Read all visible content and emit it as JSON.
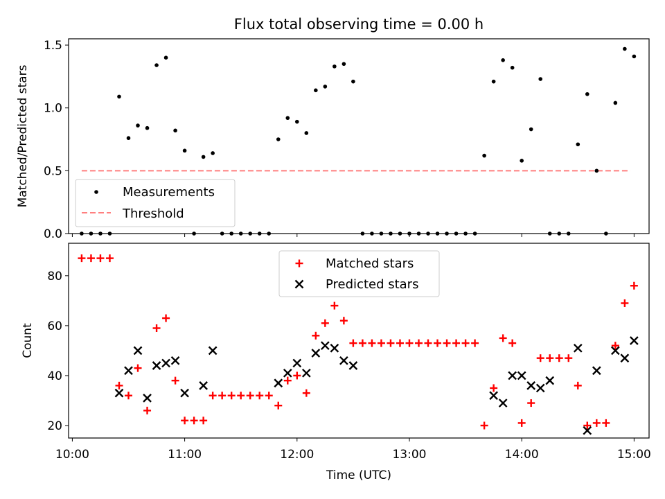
{
  "chart_data": [
    {
      "type": "scatter",
      "title": "Flux total observing time = 0.00 h",
      "xlabel": "",
      "ylabel": "Matched/Predicted stars",
      "ylim": [
        0,
        1.55
      ],
      "yticks": [
        "0.0",
        "0.5",
        "1.0",
        "1.5"
      ],
      "legend": {
        "placement": "lower-left",
        "entries": [
          "Measurements",
          "Threshold"
        ]
      },
      "threshold": {
        "name": "Threshold",
        "value": 0.5,
        "x_start": "10:05",
        "x_end": "14:58",
        "color": "#ff7f7f"
      },
      "series": [
        {
          "name": "Measurements",
          "color": "#000000",
          "x": [
            "10:05",
            "10:10",
            "10:15",
            "10:20",
            "10:25",
            "10:30",
            "10:35",
            "10:40",
            "10:45",
            "10:50",
            "10:55",
            "11:00",
            "11:05",
            "11:10",
            "11:15",
            "11:20",
            "11:25",
            "11:30",
            "11:35",
            "11:40",
            "11:45",
            "11:50",
            "11:55",
            "12:00",
            "12:05",
            "12:10",
            "12:15",
            "12:20",
            "12:25",
            "12:30",
            "12:35",
            "12:40",
            "12:45",
            "12:50",
            "12:55",
            "13:00",
            "13:05",
            "13:10",
            "13:15",
            "13:20",
            "13:25",
            "13:30",
            "13:35",
            "13:40",
            "13:45",
            "13:50",
            "13:55",
            "14:00",
            "14:05",
            "14:10",
            "14:15",
            "14:20",
            "14:25",
            "14:30",
            "14:35",
            "14:40",
            "14:45",
            "14:50",
            "14:55",
            "15:00"
          ],
          "y": [
            0,
            0,
            0,
            0,
            1.09,
            0.76,
            0.86,
            0.84,
            1.34,
            1.4,
            0.82,
            0.66,
            0,
            0.61,
            0.64,
            0,
            0,
            0,
            0,
            0,
            0,
            0.75,
            0.92,
            0.89,
            0.8,
            1.14,
            1.17,
            1.33,
            1.35,
            1.21,
            0,
            0,
            0,
            0,
            0,
            0,
            0,
            0,
            0,
            0,
            0,
            0,
            0,
            0.62,
            1.21,
            1.38,
            1.32,
            0.58,
            0.83,
            1.23,
            0,
            0,
            0,
            0.71,
            1.11,
            0.5,
            0,
            1.04,
            1.47,
            1.41
          ]
        }
      ]
    },
    {
      "type": "scatter",
      "title": "",
      "xlabel": "Time (UTC)",
      "ylabel": "Count",
      "xlim": [
        "09:58",
        "15:08"
      ],
      "xticks": [
        "10:00",
        "11:00",
        "12:00",
        "13:00",
        "14:00",
        "15:00"
      ],
      "ylim": [
        15,
        93
      ],
      "yticks": [
        "20",
        "40",
        "60",
        "80"
      ],
      "legend": {
        "placement": "upper-center",
        "entries": [
          "Matched stars",
          "Predicted stars"
        ]
      },
      "series": [
        {
          "name": "Matched stars",
          "color": "#ff0000",
          "marker": "+",
          "x": [
            "10:05",
            "10:10",
            "10:15",
            "10:20",
            "10:25",
            "10:30",
            "10:35",
            "10:40",
            "10:45",
            "10:50",
            "10:55",
            "11:00",
            "11:05",
            "11:10",
            "11:15",
            "11:20",
            "11:25",
            "11:30",
            "11:35",
            "11:40",
            "11:45",
            "11:50",
            "11:55",
            "12:00",
            "12:05",
            "12:10",
            "12:15",
            "12:20",
            "12:25",
            "12:30",
            "12:35",
            "12:40",
            "12:45",
            "12:50",
            "12:55",
            "13:00",
            "13:05",
            "13:10",
            "13:15",
            "13:20",
            "13:25",
            "13:30",
            "13:35",
            "13:40",
            "13:45",
            "13:50",
            "13:55",
            "14:00",
            "14:05",
            "14:10",
            "14:15",
            "14:20",
            "14:25",
            "14:30",
            "14:35",
            "14:40",
            "14:45",
            "14:50",
            "14:55",
            "15:00"
          ],
          "y": [
            87,
            87,
            87,
            87,
            36,
            32,
            43,
            26,
            59,
            63,
            38,
            22,
            22,
            22,
            32,
            32,
            32,
            32,
            32,
            32,
            32,
            28,
            38,
            40,
            33,
            56,
            61,
            68,
            62,
            53,
            53,
            53,
            53,
            53,
            53,
            53,
            53,
            53,
            53,
            53,
            53,
            53,
            53,
            20,
            35,
            55,
            53,
            21,
            29,
            47,
            47,
            47,
            47,
            36,
            20,
            21,
            21,
            52,
            69,
            76
          ]
        },
        {
          "name": "Predicted stars",
          "color": "#000000",
          "marker": "x",
          "x": [
            "10:25",
            "10:30",
            "10:35",
            "10:40",
            "10:45",
            "10:50",
            "10:55",
            "11:00",
            "11:10",
            "11:15",
            "11:50",
            "11:55",
            "12:00",
            "12:05",
            "12:10",
            "12:15",
            "12:20",
            "12:25",
            "12:30",
            "13:45",
            "13:50",
            "13:55",
            "14:00",
            "14:05",
            "14:10",
            "14:15",
            "14:30",
            "14:35",
            "14:40",
            "14:50",
            "14:55",
            "15:00"
          ],
          "y": [
            33,
            42,
            50,
            31,
            44,
            45,
            46,
            33,
            36,
            50,
            37,
            41,
            45,
            41,
            49,
            52,
            51,
            46,
            44,
            32,
            29,
            40,
            40,
            36,
            35,
            38,
            51,
            18,
            42,
            50,
            47,
            54
          ]
        }
      ]
    }
  ]
}
